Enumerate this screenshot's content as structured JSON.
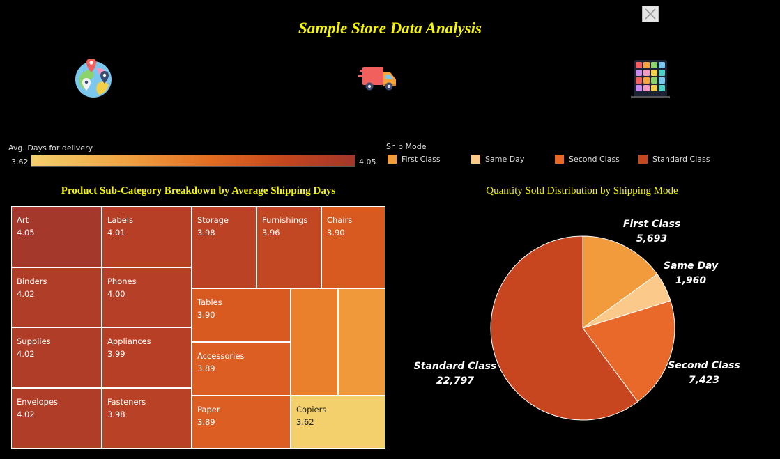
{
  "title": "Sample Store Data Analysis",
  "icons": [
    "map-globe-icon",
    "delivery-truck-icon",
    "category-grid-icon",
    "close-icon"
  ],
  "color_legend": {
    "title": "Avg. Days for delivery",
    "min_label": "3.62",
    "max_label": "4.05",
    "min_color": "#f3d06c",
    "max_color": "#a3362a"
  },
  "ship_legend": {
    "title": "Ship Mode",
    "items": [
      {
        "label": "First Class",
        "color": "#f29b3c"
      },
      {
        "label": "Same Day",
        "color": "#fbc98a"
      },
      {
        "label": "Second Class",
        "color": "#e8692a"
      },
      {
        "label": "Standard Class",
        "color": "#c8461f"
      }
    ]
  },
  "chart_data": [
    {
      "type": "treemap",
      "title": "Product Sub-Category Breakdown by  Average Shipping Days",
      "items": [
        {
          "name": "Art",
          "value": 4.05,
          "color": "#a4382b"
        },
        {
          "name": "Labels",
          "value": 4.01,
          "color": "#b73f26"
        },
        {
          "name": "Binders",
          "value": 4.02,
          "color": "#b03d28"
        },
        {
          "name": "Phones",
          "value": 4.0,
          "color": "#b53f27"
        },
        {
          "name": "Supplies",
          "value": 4.02,
          "color": "#b03d28"
        },
        {
          "name": "Appliances",
          "value": 3.99,
          "color": "#b63f26"
        },
        {
          "name": "Envelopes",
          "value": 4.02,
          "color": "#b03d28"
        },
        {
          "name": "Fasteners",
          "value": 3.98,
          "color": "#b94125"
        },
        {
          "name": "Storage",
          "value": 3.98,
          "color": "#bb4224"
        },
        {
          "name": "Furnishings",
          "value": 3.96,
          "color": "#c24723"
        },
        {
          "name": "Chairs",
          "value": 3.9,
          "color": "#d95a21"
        },
        {
          "name": "Tables",
          "value": 3.9,
          "color": "#d95a21"
        },
        {
          "name": "Accessories",
          "value": 3.89,
          "color": "#dd5e22"
        },
        {
          "name": "Paper",
          "value": 3.89,
          "color": "#dd5e22"
        },
        {
          "name": "Copiers",
          "value": 3.62,
          "color": "#f3d06c",
          "light": true
        },
        {
          "name": "",
          "value": null,
          "color": "#ea7f2c"
        },
        {
          "name": "",
          "value": null,
          "color": "#f0993b"
        }
      ]
    },
    {
      "type": "pie",
      "title": "Quantity Sold Distribution by Shipping Mode",
      "slices": [
        {
          "label": "First Class",
          "value": 5693,
          "value_label": "5,693",
          "color": "#f29b3c"
        },
        {
          "label": "Same Day",
          "value": 1960,
          "value_label": "1,960",
          "color": "#fbc98a"
        },
        {
          "label": "Second Class",
          "value": 7423,
          "value_label": "7,423",
          "color": "#e8692a"
        },
        {
          "label": "Standard Class",
          "value": 22797,
          "value_label": "22,797",
          "color": "#c8461f"
        }
      ]
    }
  ]
}
